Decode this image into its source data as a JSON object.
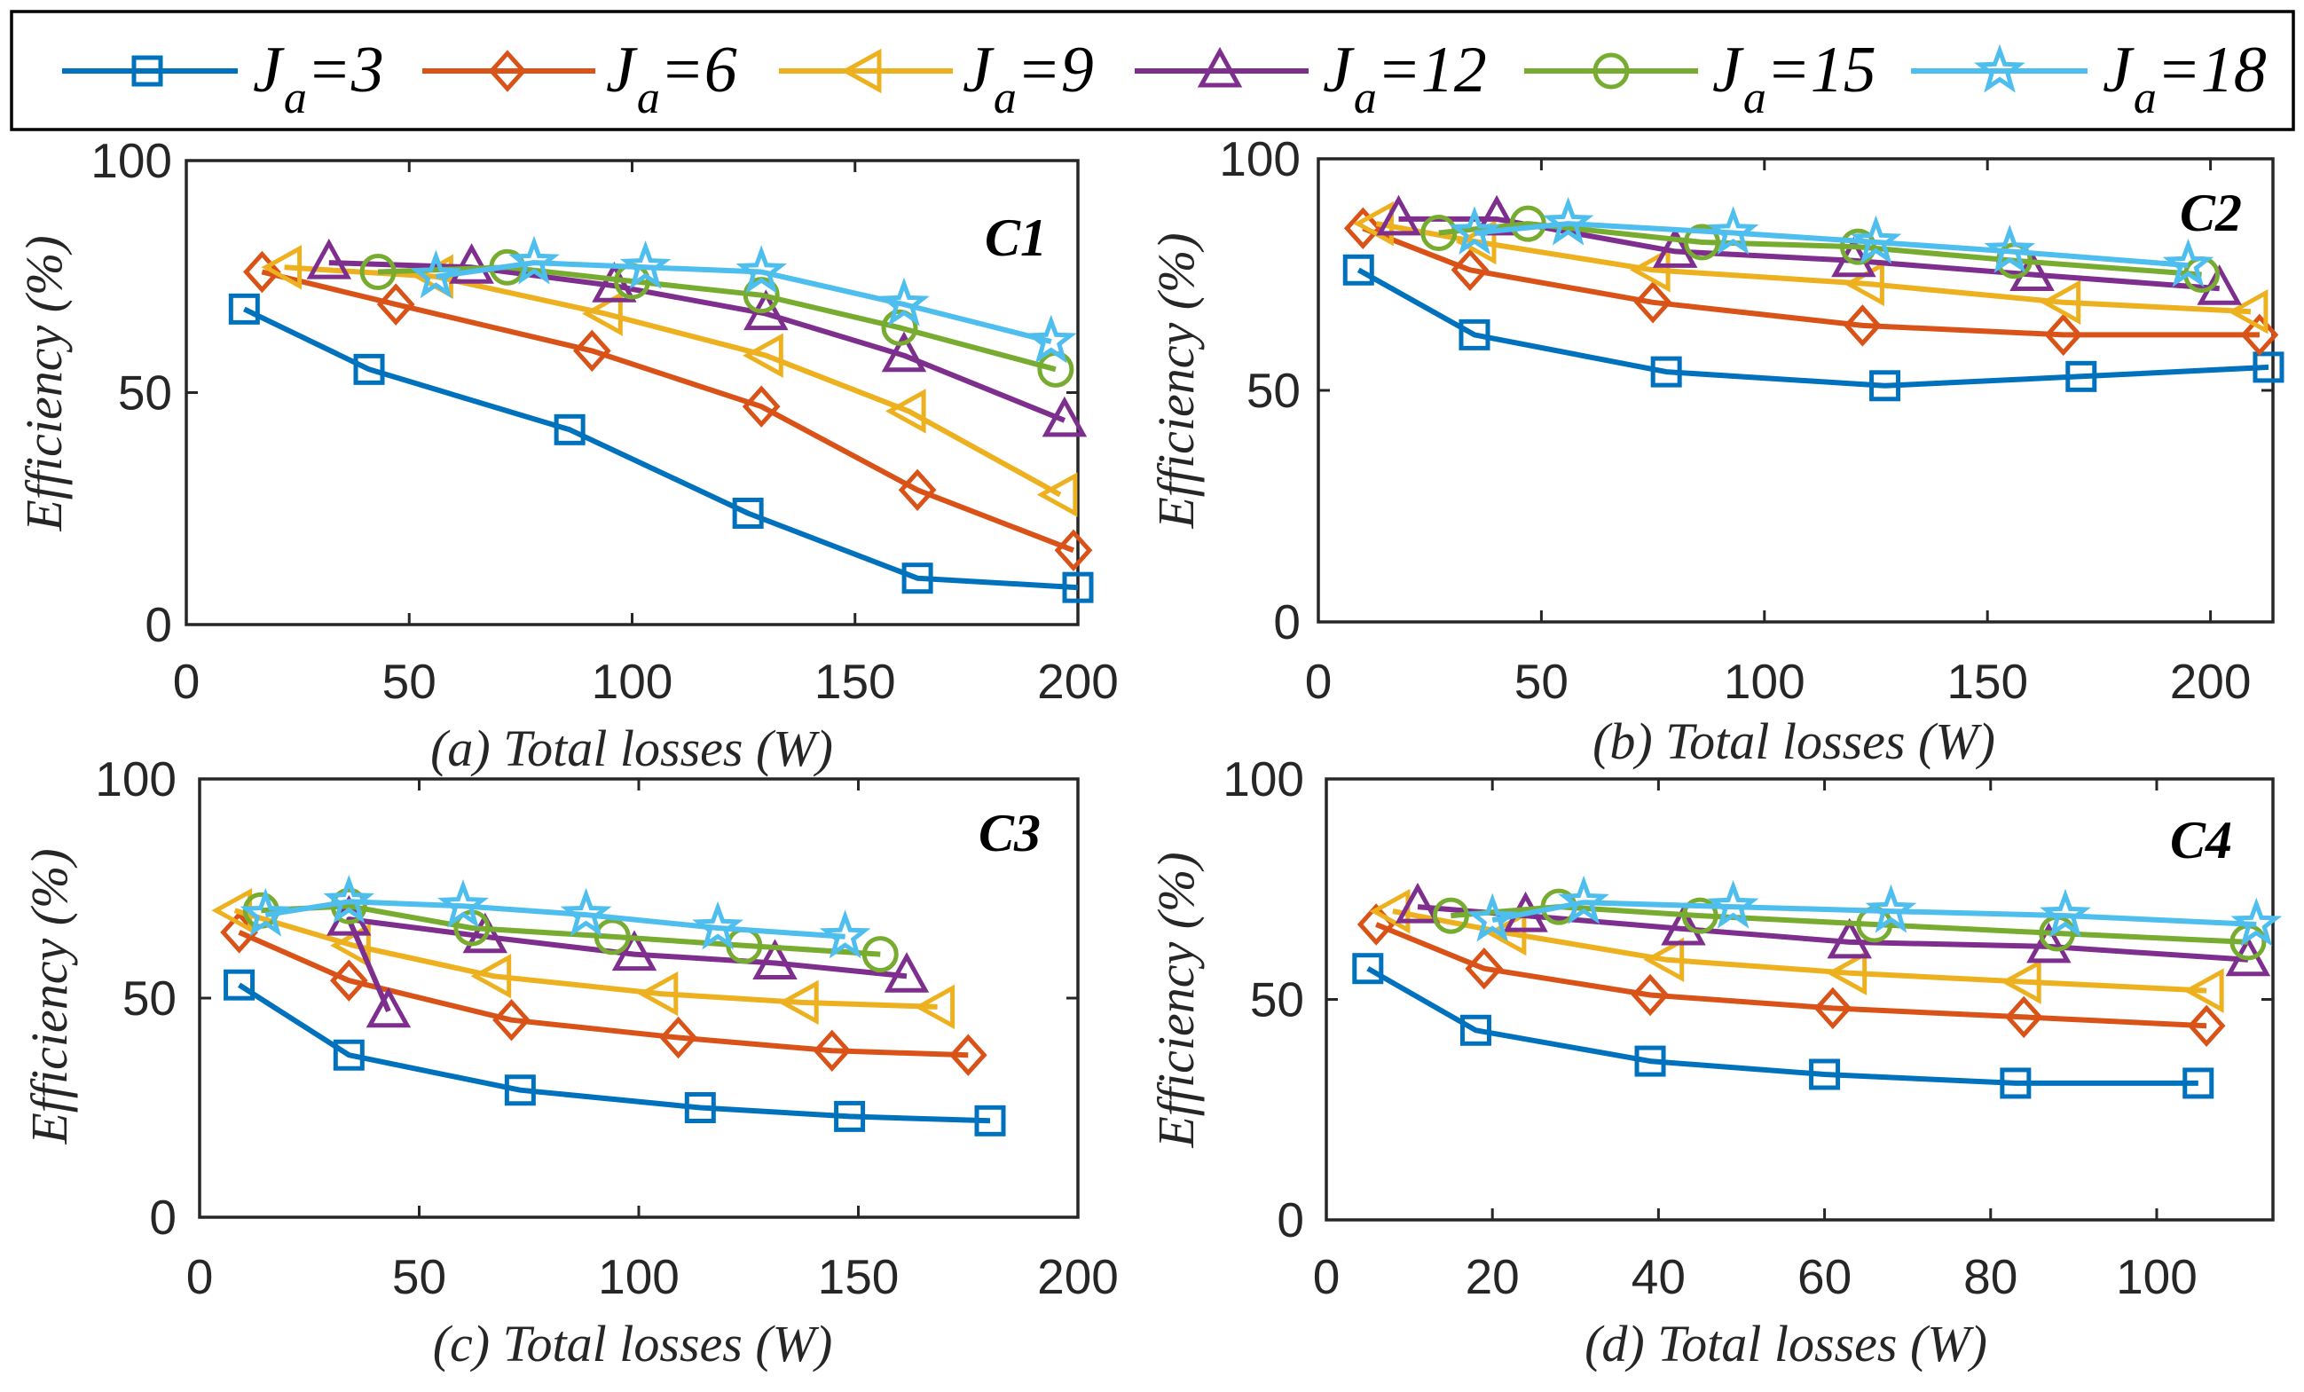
{
  "legend": {
    "entries": [
      {
        "symbol": "J",
        "subscript": "a",
        "value": "=3",
        "color": "#0072BD",
        "marker": "square"
      },
      {
        "symbol": "J",
        "subscript": "a",
        "value": "=6",
        "color": "#D95319",
        "marker": "diamond"
      },
      {
        "symbol": "J",
        "subscript": "a",
        "value": "=9",
        "color": "#EDB120",
        "marker": "triangle-left"
      },
      {
        "symbol": "J",
        "subscript": "a",
        "value": "=12",
        "color": "#7E2F8E",
        "marker": "triangle-up"
      },
      {
        "symbol": "J",
        "subscript": "a",
        "value": "=15",
        "color": "#77AC30",
        "marker": "circle"
      },
      {
        "symbol": "J",
        "subscript": "a",
        "value": "=18",
        "color": "#4DBEEE",
        "marker": "star"
      }
    ]
  },
  "chart_data": [
    {
      "type": "line",
      "title": "C1",
      "xlabel": "(a) Total losses (W)",
      "ylabel": "Efficiency (%)",
      "xlim": [
        0,
        200
      ],
      "ylim": [
        0,
        100
      ],
      "xticks": [
        0,
        50,
        100,
        150,
        200
      ],
      "yticks": [
        0,
        50,
        100
      ],
      "series": [
        {
          "legend_index": 0,
          "x": [
            13,
            41,
            86,
            126,
            164,
            200
          ],
          "y": [
            68,
            55,
            42,
            24,
            10,
            8
          ]
        },
        {
          "legend_index": 1,
          "x": [
            17,
            47,
            91,
            129,
            164,
            199
          ],
          "y": [
            76,
            69,
            59,
            47,
            29,
            16
          ]
        },
        {
          "legend_index": 2,
          "x": [
            22,
            56,
            94,
            130,
            162,
            196
          ],
          "y": [
            77,
            75,
            67,
            58,
            46,
            28
          ]
        },
        {
          "legend_index": 3,
          "x": [
            32,
            64,
            96,
            130,
            161,
            197
          ],
          "y": [
            78,
            77,
            73,
            67,
            58,
            44
          ]
        },
        {
          "legend_index": 4,
          "x": [
            43,
            72,
            100,
            129,
            160,
            195
          ],
          "y": [
            76,
            77,
            74,
            71,
            64,
            55
          ]
        },
        {
          "legend_index": 5,
          "x": [
            56,
            78,
            103,
            129,
            161,
            194
          ],
          "y": [
            75,
            78,
            77,
            76,
            69,
            61
          ]
        }
      ]
    },
    {
      "type": "line",
      "title": "C2",
      "xlabel": "(b) Total losses (W)",
      "ylabel": "Efficiency (%)",
      "xlim": [
        0,
        214
      ],
      "ylim": [
        0,
        100
      ],
      "xticks": [
        0,
        50,
        100,
        150,
        200
      ],
      "yticks": [
        0,
        50,
        100
      ],
      "series": [
        {
          "legend_index": 0,
          "x": [
            9,
            35,
            78,
            127,
            171,
            213
          ],
          "y": [
            76,
            62,
            54,
            51,
            53,
            55
          ]
        },
        {
          "legend_index": 1,
          "x": [
            10,
            34,
            75,
            122,
            167,
            211
          ],
          "y": [
            85,
            76,
            69,
            64,
            62,
            62
          ]
        },
        {
          "legend_index": 2,
          "x": [
            13,
            36,
            75,
            123,
            167,
            209
          ],
          "y": [
            86,
            82,
            76,
            73,
            69,
            67
          ]
        },
        {
          "legend_index": 3,
          "x": [
            18,
            40,
            80,
            120,
            160,
            202
          ],
          "y": [
            87,
            87,
            80,
            78,
            75,
            72
          ]
        },
        {
          "legend_index": 4,
          "x": [
            27,
            47,
            86,
            121,
            156,
            198
          ],
          "y": [
            84,
            86,
            82,
            81,
            78,
            75
          ]
        },
        {
          "legend_index": 5,
          "x": [
            35,
            56,
            93,
            125,
            155,
            195
          ],
          "y": [
            84,
            86,
            84,
            82,
            80,
            77
          ]
        }
      ]
    },
    {
      "type": "line",
      "title": "C3",
      "xlabel": "(c) Total losses (W)",
      "ylabel": "Efficiency (%)",
      "xlim": [
        0,
        200
      ],
      "ylim": [
        0,
        100
      ],
      "xticks": [
        0,
        50,
        100,
        150,
        200
      ],
      "yticks": [
        0,
        50,
        100
      ],
      "series": [
        {
          "legend_index": 0,
          "x": [
            9,
            34,
            73,
            114,
            148,
            180
          ],
          "y": [
            53,
            37,
            29,
            25,
            23,
            22
          ]
        },
        {
          "legend_index": 1,
          "x": [
            9,
            34,
            71,
            109,
            144,
            175
          ],
          "y": [
            65,
            54,
            45,
            41,
            38,
            37
          ]
        },
        {
          "legend_index": 2,
          "x": [
            8,
            35,
            67,
            105,
            137,
            168
          ],
          "y": [
            70,
            62,
            55,
            51,
            49,
            48
          ]
        },
        {
          "legend_index": 3,
          "x": [
            43,
            34,
            65,
            99,
            131,
            161
          ],
          "y": [
            47,
            68,
            64,
            60,
            58,
            55
          ]
        },
        {
          "legend_index": 4,
          "x": [
            14,
            34,
            62,
            94,
            124,
            155
          ],
          "y": [
            70,
            71,
            66,
            64,
            62,
            60
          ]
        },
        {
          "legend_index": 5,
          "x": [
            15,
            34,
            60,
            88,
            118,
            147
          ],
          "y": [
            69,
            72,
            71,
            69,
            66,
            64
          ]
        }
      ]
    },
    {
      "type": "line",
      "title": "C4",
      "xlabel": "(d) Total losses (W)",
      "ylabel": "Efficiency (%)",
      "xlim": [
        0,
        114
      ],
      "ylim": [
        0,
        100
      ],
      "xticks": [
        0,
        20,
        40,
        60,
        80,
        100
      ],
      "yticks": [
        0,
        50,
        100
      ],
      "series": [
        {
          "legend_index": 0,
          "x": [
            5,
            18,
            39,
            60,
            83,
            105
          ],
          "y": [
            57,
            43,
            36,
            33,
            31,
            31
          ]
        },
        {
          "legend_index": 1,
          "x": [
            6,
            19,
            39,
            61,
            84,
            106
          ],
          "y": [
            67,
            57,
            51,
            48,
            46,
            44
          ]
        },
        {
          "legend_index": 2,
          "x": [
            8,
            22,
            41,
            63,
            84,
            106
          ],
          "y": [
            70,
            65,
            59,
            56,
            54,
            52
          ]
        },
        {
          "legend_index": 3,
          "x": [
            11,
            24,
            43,
            63,
            87,
            111
          ],
          "y": [
            71,
            69,
            66,
            63,
            62,
            59
          ]
        },
        {
          "legend_index": 4,
          "x": [
            15,
            28,
            45,
            66,
            88,
            111
          ],
          "y": [
            69,
            71,
            69,
            67,
            65,
            63
          ]
        },
        {
          "legend_index": 5,
          "x": [
            20,
            31,
            49,
            68,
            89,
            112
          ],
          "y": [
            68,
            72,
            71,
            70,
            69,
            67
          ]
        }
      ]
    }
  ]
}
